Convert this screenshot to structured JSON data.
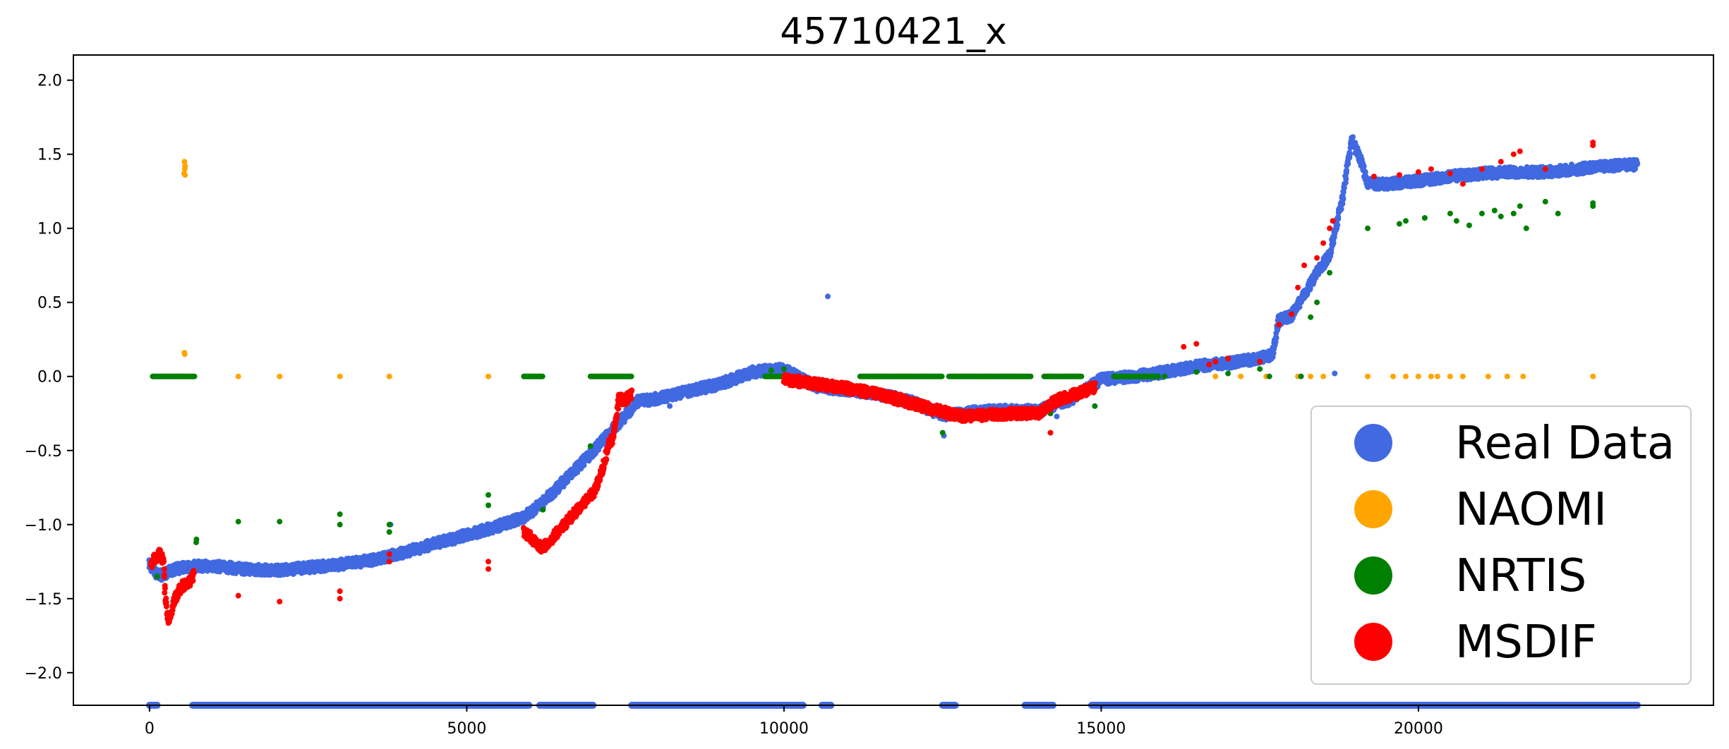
{
  "chart_data": {
    "type": "scatter",
    "title": "45710421_x",
    "xlabel": "",
    "ylabel": "",
    "xlim": [
      -1200,
      24650
    ],
    "ylim": [
      -2.22,
      2.17
    ],
    "x_ticks": [
      0,
      5000,
      10000,
      15000,
      20000
    ],
    "x_tick_labels": [
      "0",
      "5000",
      "10000",
      "15000",
      "20000"
    ],
    "y_ticks": [
      -2.0,
      -1.5,
      -1.0,
      -0.5,
      0.0,
      0.5,
      1.0,
      1.5,
      2.0
    ],
    "y_tick_labels": [
      "−2.0",
      "−1.5",
      "−1.0",
      "−0.5",
      "0.0",
      "0.5",
      "1.0",
      "1.5",
      "2.0"
    ],
    "grid": false,
    "legend_placement": "lower-right",
    "series": [
      {
        "name": "Real Data",
        "color": "#4169e1",
        "curve": [
          [
            0,
            -1.27
          ],
          [
            100,
            -1.33
          ],
          [
            200,
            -1.34
          ],
          [
            400,
            -1.3
          ],
          [
            700,
            -1.28
          ],
          [
            1000,
            -1.28
          ],
          [
            1500,
            -1.3
          ],
          [
            2000,
            -1.31
          ],
          [
            2500,
            -1.29
          ],
          [
            3000,
            -1.27
          ],
          [
            3500,
            -1.24
          ],
          [
            4000,
            -1.19
          ],
          [
            4500,
            -1.13
          ],
          [
            5000,
            -1.07
          ],
          [
            5500,
            -1.01
          ],
          [
            5900,
            -0.95
          ],
          [
            6200,
            -0.85
          ],
          [
            6500,
            -0.72
          ],
          [
            6800,
            -0.59
          ],
          [
            7000,
            -0.5
          ],
          [
            7700,
            -0.17
          ],
          [
            8000,
            -0.15
          ],
          [
            8500,
            -0.1
          ],
          [
            9000,
            -0.05
          ],
          [
            9500,
            0.03
          ],
          [
            10000,
            0.05
          ],
          [
            10500,
            -0.07
          ],
          [
            11000,
            -0.09
          ],
          [
            11500,
            -0.12
          ],
          [
            12000,
            -0.17
          ],
          [
            12500,
            -0.26
          ],
          [
            13000,
            -0.24
          ],
          [
            13500,
            -0.23
          ],
          [
            14000,
            -0.23
          ],
          [
            14500,
            -0.16
          ],
          [
            15000,
            -0.02
          ],
          [
            15500,
            0.0
          ],
          [
            16000,
            0.03
          ],
          [
            16500,
            0.07
          ],
          [
            17000,
            0.09
          ],
          [
            17500,
            0.12
          ],
          [
            17700,
            0.15
          ],
          [
            17800,
            0.38
          ],
          [
            18000,
            0.41
          ],
          [
            18200,
            0.55
          ],
          [
            18400,
            0.7
          ],
          [
            18600,
            0.82
          ],
          [
            18800,
            1.2
          ],
          [
            18950,
            1.6
          ],
          [
            19100,
            1.45
          ],
          [
            19200,
            1.3
          ],
          [
            19500,
            1.3
          ],
          [
            20000,
            1.32
          ],
          [
            20500,
            1.35
          ],
          [
            21000,
            1.37
          ],
          [
            21500,
            1.38
          ],
          [
            22000,
            1.38
          ],
          [
            22500,
            1.4
          ],
          [
            23000,
            1.42
          ],
          [
            23450,
            1.43
          ]
        ],
        "outliers": [
          [
            10690,
            0.54
          ],
          [
            12520,
            -0.4
          ],
          [
            18680,
            0.02
          ],
          [
            14300,
            -0.27
          ],
          [
            3800,
            -1.0
          ],
          [
            8200,
            -0.2
          ]
        ],
        "baseline_y": -2.22,
        "baseline_segments": [
          [
            0,
            130
          ],
          [
            680,
            5980
          ],
          [
            6150,
            7000
          ],
          [
            7600,
            10300
          ],
          [
            10600,
            10750
          ],
          [
            12500,
            12700
          ],
          [
            13800,
            14250
          ],
          [
            14850,
            23450
          ]
        ]
      },
      {
        "name": "NAOMI",
        "color": "#ffa500",
        "points": [
          [
            550,
            1.45
          ],
          [
            560,
            1.42
          ],
          [
            555,
            1.4
          ],
          [
            545,
            1.37
          ],
          [
            560,
            1.36
          ],
          [
            550,
            0.16
          ],
          [
            555,
            0.15
          ],
          [
            1400,
            0.0
          ],
          [
            2050,
            0.0
          ],
          [
            3000,
            0.0
          ],
          [
            3780,
            0.0
          ],
          [
            5340,
            0.0
          ],
          [
            9800,
            0.0
          ],
          [
            10050,
            0.0
          ],
          [
            14200,
            0.0
          ],
          [
            16800,
            0.0
          ],
          [
            17200,
            0.0
          ],
          [
            17600,
            0.0
          ],
          [
            18100,
            0.0
          ],
          [
            18300,
            0.0
          ],
          [
            18500,
            0.0
          ],
          [
            19200,
            0.0
          ],
          [
            19600,
            0.0
          ],
          [
            19800,
            0.0
          ],
          [
            20000,
            0.0
          ],
          [
            20200,
            0.0
          ],
          [
            20300,
            0.0
          ],
          [
            20500,
            0.0
          ],
          [
            20700,
            0.0
          ],
          [
            21100,
            0.0
          ],
          [
            21400,
            0.0
          ],
          [
            21650,
            0.0
          ],
          [
            22750,
            0.0
          ]
        ]
      },
      {
        "name": "NRTIS",
        "color": "#008000",
        "segments_at_zero": [
          [
            50,
            720
          ],
          [
            5900,
            6200
          ],
          [
            6950,
            7600
          ],
          [
            9700,
            10000
          ],
          [
            11200,
            12500
          ],
          [
            12600,
            13900
          ],
          [
            14100,
            14700
          ],
          [
            15200,
            15900
          ]
        ],
        "points": [
          [
            120,
            -1.35
          ],
          [
            740,
            -1.1
          ],
          [
            735,
            -1.12
          ],
          [
            1400,
            -0.98
          ],
          [
            2050,
            -0.98
          ],
          [
            3000,
            -0.93
          ],
          [
            3000,
            -1.0
          ],
          [
            3780,
            -1.05
          ],
          [
            3780,
            -1.0
          ],
          [
            5340,
            -0.8
          ],
          [
            5340,
            -0.87
          ],
          [
            6200,
            -0.9
          ],
          [
            6950,
            -0.47
          ],
          [
            7500,
            -0.14
          ],
          [
            9800,
            0.04
          ],
          [
            10000,
            0.05
          ],
          [
            12500,
            -0.38
          ],
          [
            14200,
            -0.25
          ],
          [
            14900,
            -0.2
          ],
          [
            16000,
            0.0
          ],
          [
            16500,
            0.03
          ],
          [
            17000,
            0.02
          ],
          [
            17500,
            0.05
          ],
          [
            18300,
            0.4
          ],
          [
            18400,
            0.5
          ],
          [
            18600,
            0.7
          ],
          [
            19200,
            1.0
          ],
          [
            19800,
            1.05
          ],
          [
            19700,
            1.03
          ],
          [
            20100,
            1.07
          ],
          [
            20500,
            1.1
          ],
          [
            20600,
            1.05
          ],
          [
            20800,
            1.02
          ],
          [
            21000,
            1.1
          ],
          [
            21200,
            1.12
          ],
          [
            21300,
            1.08
          ],
          [
            21700,
            1.0
          ],
          [
            21600,
            1.15
          ],
          [
            21500,
            1.1
          ],
          [
            22000,
            1.18
          ],
          [
            22200,
            1.1
          ],
          [
            22750,
            1.15
          ],
          [
            22750,
            1.17
          ],
          [
            18150,
            0.0
          ],
          [
            17650,
            0.0
          ]
        ]
      },
      {
        "name": "MSDIF",
        "color": "#ff0000",
        "curve": [
          [
            30,
            -1.26
          ],
          [
            150,
            -1.2
          ],
          [
            220,
            -1.24
          ],
          [
            260,
            -1.55
          ],
          [
            300,
            -1.65
          ],
          [
            400,
            -1.5
          ],
          [
            500,
            -1.42
          ],
          [
            600,
            -1.4
          ],
          [
            700,
            -1.34
          ],
          [
            5900,
            -1.05
          ],
          [
            6000,
            -1.08
          ],
          [
            6100,
            -1.13
          ],
          [
            6200,
            -1.16
          ],
          [
            7000,
            -0.78
          ],
          [
            7100,
            -0.68
          ],
          [
            7250,
            -0.45
          ],
          [
            7300,
            -0.42
          ],
          [
            7400,
            -0.15
          ],
          [
            7500,
            -0.16
          ],
          [
            7600,
            -0.12
          ],
          [
            10000,
            -0.02
          ],
          [
            10500,
            -0.05
          ],
          [
            11000,
            -0.08
          ],
          [
            11500,
            -0.12
          ],
          [
            12000,
            -0.18
          ],
          [
            12500,
            -0.24
          ],
          [
            12800,
            -0.27
          ],
          [
            13200,
            -0.26
          ],
          [
            13600,
            -0.25
          ],
          [
            14000,
            -0.25
          ],
          [
            14300,
            -0.16
          ],
          [
            14600,
            -0.12
          ],
          [
            14900,
            -0.07
          ]
        ],
        "points": [
          [
            1400,
            -1.48
          ],
          [
            2050,
            -1.52
          ],
          [
            3000,
            -1.45
          ],
          [
            3000,
            -1.5
          ],
          [
            3780,
            -1.2
          ],
          [
            3780,
            -1.25
          ],
          [
            5340,
            -1.3
          ],
          [
            5340,
            -1.25
          ],
          [
            14200,
            -0.38
          ],
          [
            16300,
            0.2
          ],
          [
            16500,
            0.22
          ],
          [
            16700,
            0.08
          ],
          [
            16800,
            0.1
          ],
          [
            17000,
            0.12
          ],
          [
            17500,
            0.1
          ],
          [
            17800,
            0.35
          ],
          [
            18000,
            0.42
          ],
          [
            18100,
            0.6
          ],
          [
            18200,
            0.75
          ],
          [
            18400,
            0.8
          ],
          [
            18500,
            0.9
          ],
          [
            18600,
            1.0
          ],
          [
            18650,
            1.05
          ],
          [
            19300,
            1.35
          ],
          [
            19700,
            1.36
          ],
          [
            20000,
            1.38
          ],
          [
            20200,
            1.4
          ],
          [
            20500,
            1.37
          ],
          [
            20700,
            1.3
          ],
          [
            21000,
            1.4
          ],
          [
            21300,
            1.45
          ],
          [
            21500,
            1.5
          ],
          [
            21600,
            1.52
          ],
          [
            22000,
            1.4
          ],
          [
            22750,
            1.58
          ],
          [
            22750,
            1.56
          ]
        ]
      }
    ]
  }
}
